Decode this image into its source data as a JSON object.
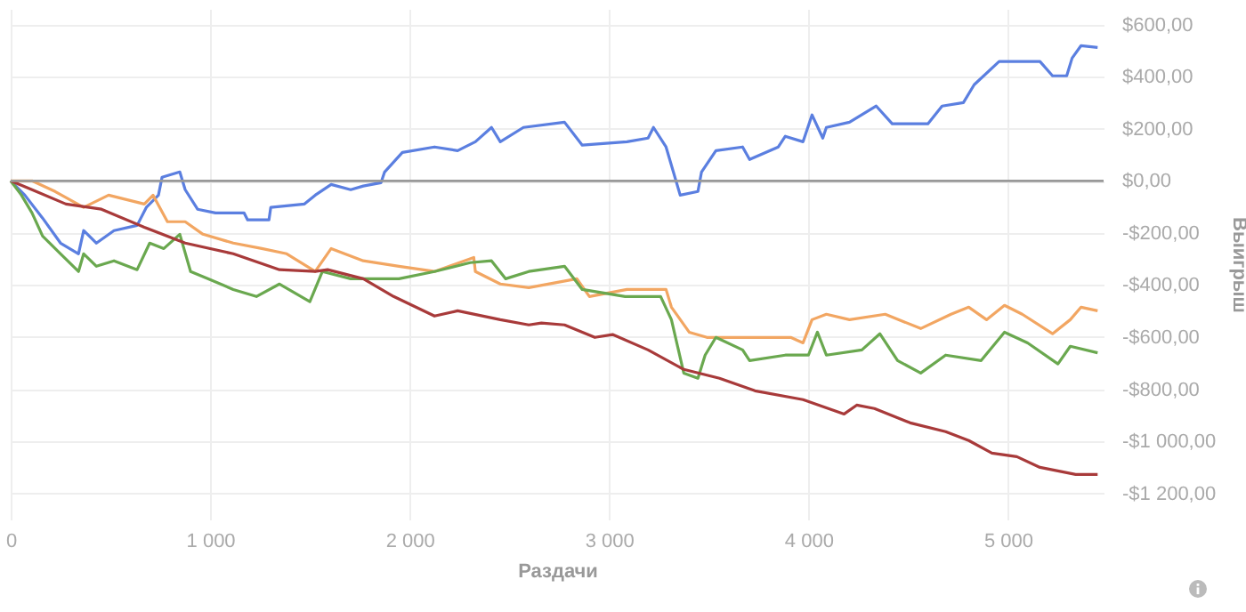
{
  "chart_data": {
    "type": "line",
    "xlabel": "Раздачи",
    "ylabel": "Выигрыш",
    "xlim": [
      0,
      5480
    ],
    "ylim": [
      -1300,
      660
    ],
    "xticks": [
      0,
      {
        "value": 1000,
        "label": "1 000"
      },
      {
        "value": 2000,
        "label": "2 000"
      },
      {
        "value": 3000,
        "label": "3 000"
      },
      {
        "value": 4000,
        "label": "4 000"
      },
      {
        "value": 5000,
        "label": "5 000"
      }
    ],
    "yticks": [
      {
        "value": 600,
        "label": "$600,00"
      },
      {
        "value": 400,
        "label": "$400,00"
      },
      {
        "value": 200,
        "label": "$200,00"
      },
      {
        "value": 0,
        "label": "$0,00"
      },
      {
        "value": -200,
        "label": "-$200,00"
      },
      {
        "value": -400,
        "label": "-$400,00"
      },
      {
        "value": -600,
        "label": "-$600,00"
      },
      {
        "value": -800,
        "label": "-$800,00"
      },
      {
        "value": -1000,
        "label": "-$1 000,00"
      },
      {
        "value": -1200,
        "label": "-$1 200,00"
      }
    ],
    "grid": true,
    "legend": false,
    "line_style": "solid",
    "marker": "none",
    "ref_lines": [
      {
        "axis": "y",
        "value": 0,
        "color": "#999999"
      }
    ],
    "series": [
      {
        "color": "#5b7fe0",
        "x": [
          0,
          71,
          160,
          250,
          340,
          366,
          430,
          518,
          634,
          680,
          741,
          759,
          848,
          875,
          937,
          1027,
          1170,
          1188,
          1295,
          1304,
          1473,
          1527,
          1607,
          1705,
          1768,
          1857,
          1875,
          1964,
          2125,
          2241,
          2330,
          2411,
          2455,
          2571,
          2777,
          2866,
          3090,
          3196,
          3223,
          3286,
          3357,
          3446,
          3464,
          3536,
          3670,
          3705,
          3849,
          3884,
          3973,
          4018,
          4072,
          4090,
          4206,
          4340,
          4420,
          4599,
          4670,
          4777,
          4831,
          4956,
          5161,
          5224,
          5295,
          5322,
          5367,
          5450
        ],
        "values": [
          0,
          -55,
          -143,
          -239,
          -280,
          -191,
          -239,
          -191,
          -171,
          -102,
          -55,
          14,
          34,
          -34,
          -109,
          -123,
          -123,
          -150,
          -150,
          -102,
          -89,
          -55,
          -14,
          -34,
          -20,
          -7,
          34,
          109,
          130,
          116,
          150,
          205,
          150,
          205,
          225,
          137,
          150,
          164,
          205,
          130,
          -55,
          -41,
          34,
          116,
          130,
          82,
          130,
          171,
          150,
          253,
          164,
          205,
          225,
          287,
          219,
          219,
          287,
          300,
          369,
          458,
          458,
          403,
          403,
          471,
          519,
          512
        ]
      },
      {
        "color": "#f2a662",
        "x": [
          0,
          107,
          223,
          366,
          491,
          670,
          714,
          786,
          875,
          964,
          1116,
          1259,
          1384,
          1527,
          1607,
          1768,
          1947,
          2125,
          2322,
          2330,
          2455,
          2598,
          2839,
          2902,
          3090,
          3170,
          3286,
          3313,
          3402,
          3491,
          3670,
          3911,
          3973,
          4018,
          4090,
          4206,
          4385,
          4563,
          4715,
          4804,
          4893,
          4983,
          5072,
          5224,
          5313,
          5367,
          5450
        ],
        "values": [
          0,
          0,
          -41,
          -102,
          -55,
          -89,
          -55,
          -157,
          -157,
          -205,
          -239,
          -260,
          -280,
          -348,
          -260,
          -307,
          -328,
          -348,
          -294,
          -348,
          -396,
          -410,
          -376,
          -444,
          -417,
          -417,
          -417,
          -485,
          -581,
          -601,
          -601,
          -601,
          -622,
          -533,
          -512,
          -533,
          -512,
          -567,
          -512,
          -485,
          -533,
          -478,
          -512,
          -587,
          -533,
          -485,
          -499
        ]
      },
      {
        "color": "#6aa84f",
        "x": [
          0,
          54,
          107,
          160,
          250,
          340,
          366,
          430,
          518,
          634,
          697,
          768,
          848,
          902,
          991,
          1116,
          1232,
          1348,
          1500,
          1563,
          1705,
          1947,
          2125,
          2304,
          2411,
          2482,
          2598,
          2777,
          2866,
          3081,
          3259,
          3313,
          3375,
          3446,
          3482,
          3536,
          3670,
          3705,
          3884,
          4000,
          4045,
          4090,
          4268,
          4358,
          4447,
          4563,
          4688,
          4866,
          4983,
          5099,
          5251,
          5313,
          5450
        ],
        "values": [
          0,
          -55,
          -123,
          -212,
          -280,
          -348,
          -280,
          -328,
          -307,
          -341,
          -239,
          -260,
          -205,
          -348,
          -376,
          -417,
          -444,
          -396,
          -464,
          -348,
          -376,
          -376,
          -348,
          -314,
          -307,
          -376,
          -348,
          -328,
          -417,
          -444,
          -444,
          -533,
          -738,
          -758,
          -669,
          -601,
          -649,
          -690,
          -669,
          -669,
          -581,
          -669,
          -649,
          -587,
          -690,
          -738,
          -669,
          -690,
          -581,
          -622,
          -703,
          -635,
          -660
        ]
      },
      {
        "color": "#a83a3a",
        "x": [
          0,
          107,
          277,
          455,
          670,
          875,
          1116,
          1348,
          1527,
          1589,
          1768,
          1920,
          2125,
          2241,
          2455,
          2598,
          2661,
          2777,
          2929,
          3018,
          3196,
          3375,
          3554,
          3732,
          3973,
          4179,
          4242,
          4331,
          4510,
          4688,
          4804,
          4920,
          5045,
          5161,
          5340,
          5450
        ],
        "values": [
          0,
          -34,
          -89,
          -109,
          -178,
          -239,
          -280,
          -341,
          -348,
          -341,
          -376,
          -444,
          -519,
          -499,
          -533,
          -553,
          -546,
          -553,
          -601,
          -590,
          -649,
          -724,
          -758,
          -806,
          -840,
          -895,
          -861,
          -874,
          -929,
          -963,
          -997,
          -1045,
          -1059,
          -1100,
          -1127,
          -1127
        ]
      }
    ]
  }
}
